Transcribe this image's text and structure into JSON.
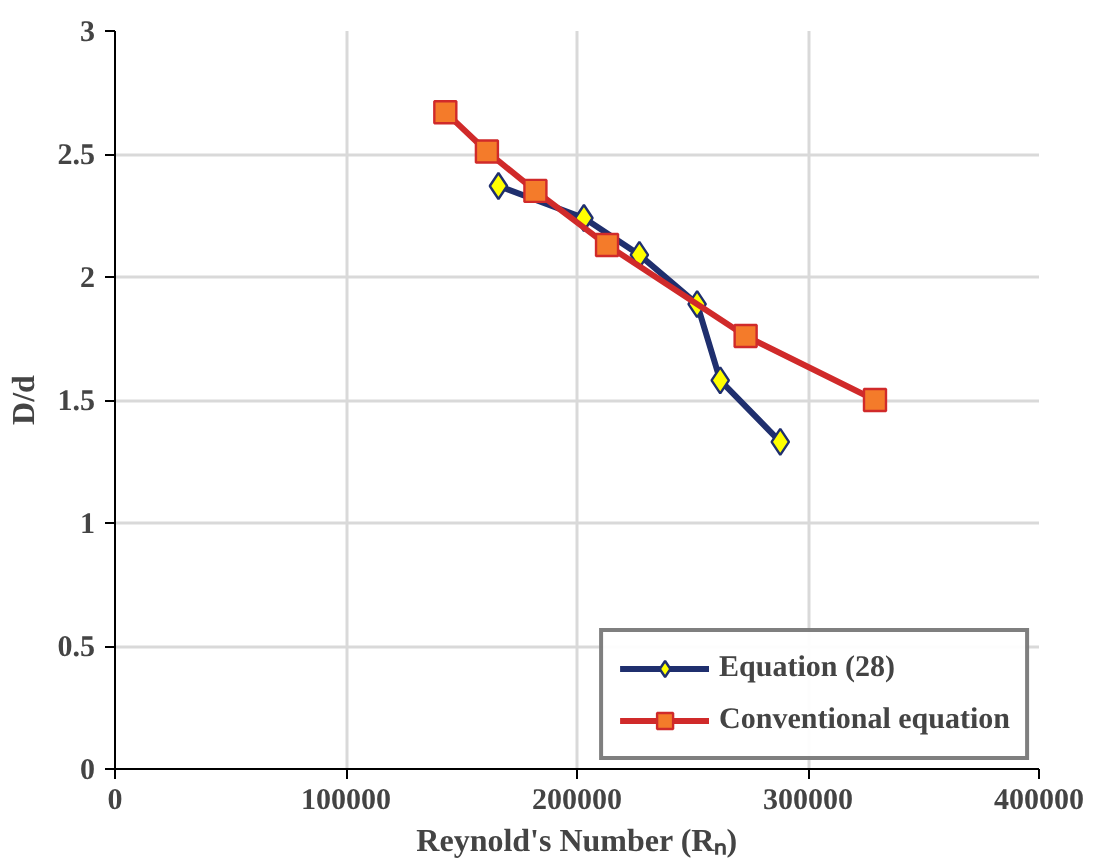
{
  "chart_data": {
    "type": "line",
    "xlabel": "Reynold's Number (Rₙ)",
    "ylabel": "D/d",
    "xlim": [
      0,
      400000
    ],
    "xticks": [
      0,
      100000,
      200000,
      300000,
      400000
    ],
    "ylim": [
      0,
      3
    ],
    "yticks": [
      0,
      0.5,
      1,
      1.5,
      2,
      2.5,
      3
    ],
    "grid": true,
    "legend": "bottom right",
    "series": [
      {
        "name": "Equation (28)",
        "color": "#1f2f6e",
        "marker": "diamond",
        "x": [
          166000,
          203000,
          227000,
          252000,
          262000,
          288000
        ],
        "values": [
          2.37,
          2.24,
          2.09,
          1.89,
          1.58,
          1.33
        ]
      },
      {
        "name": "Conventional equation",
        "color": "#d02a2a",
        "marker": "square",
        "x": [
          143000,
          161000,
          182000,
          213000,
          273000,
          329000
        ],
        "values": [
          2.67,
          2.51,
          2.35,
          2.13,
          1.76,
          1.5
        ]
      }
    ]
  }
}
